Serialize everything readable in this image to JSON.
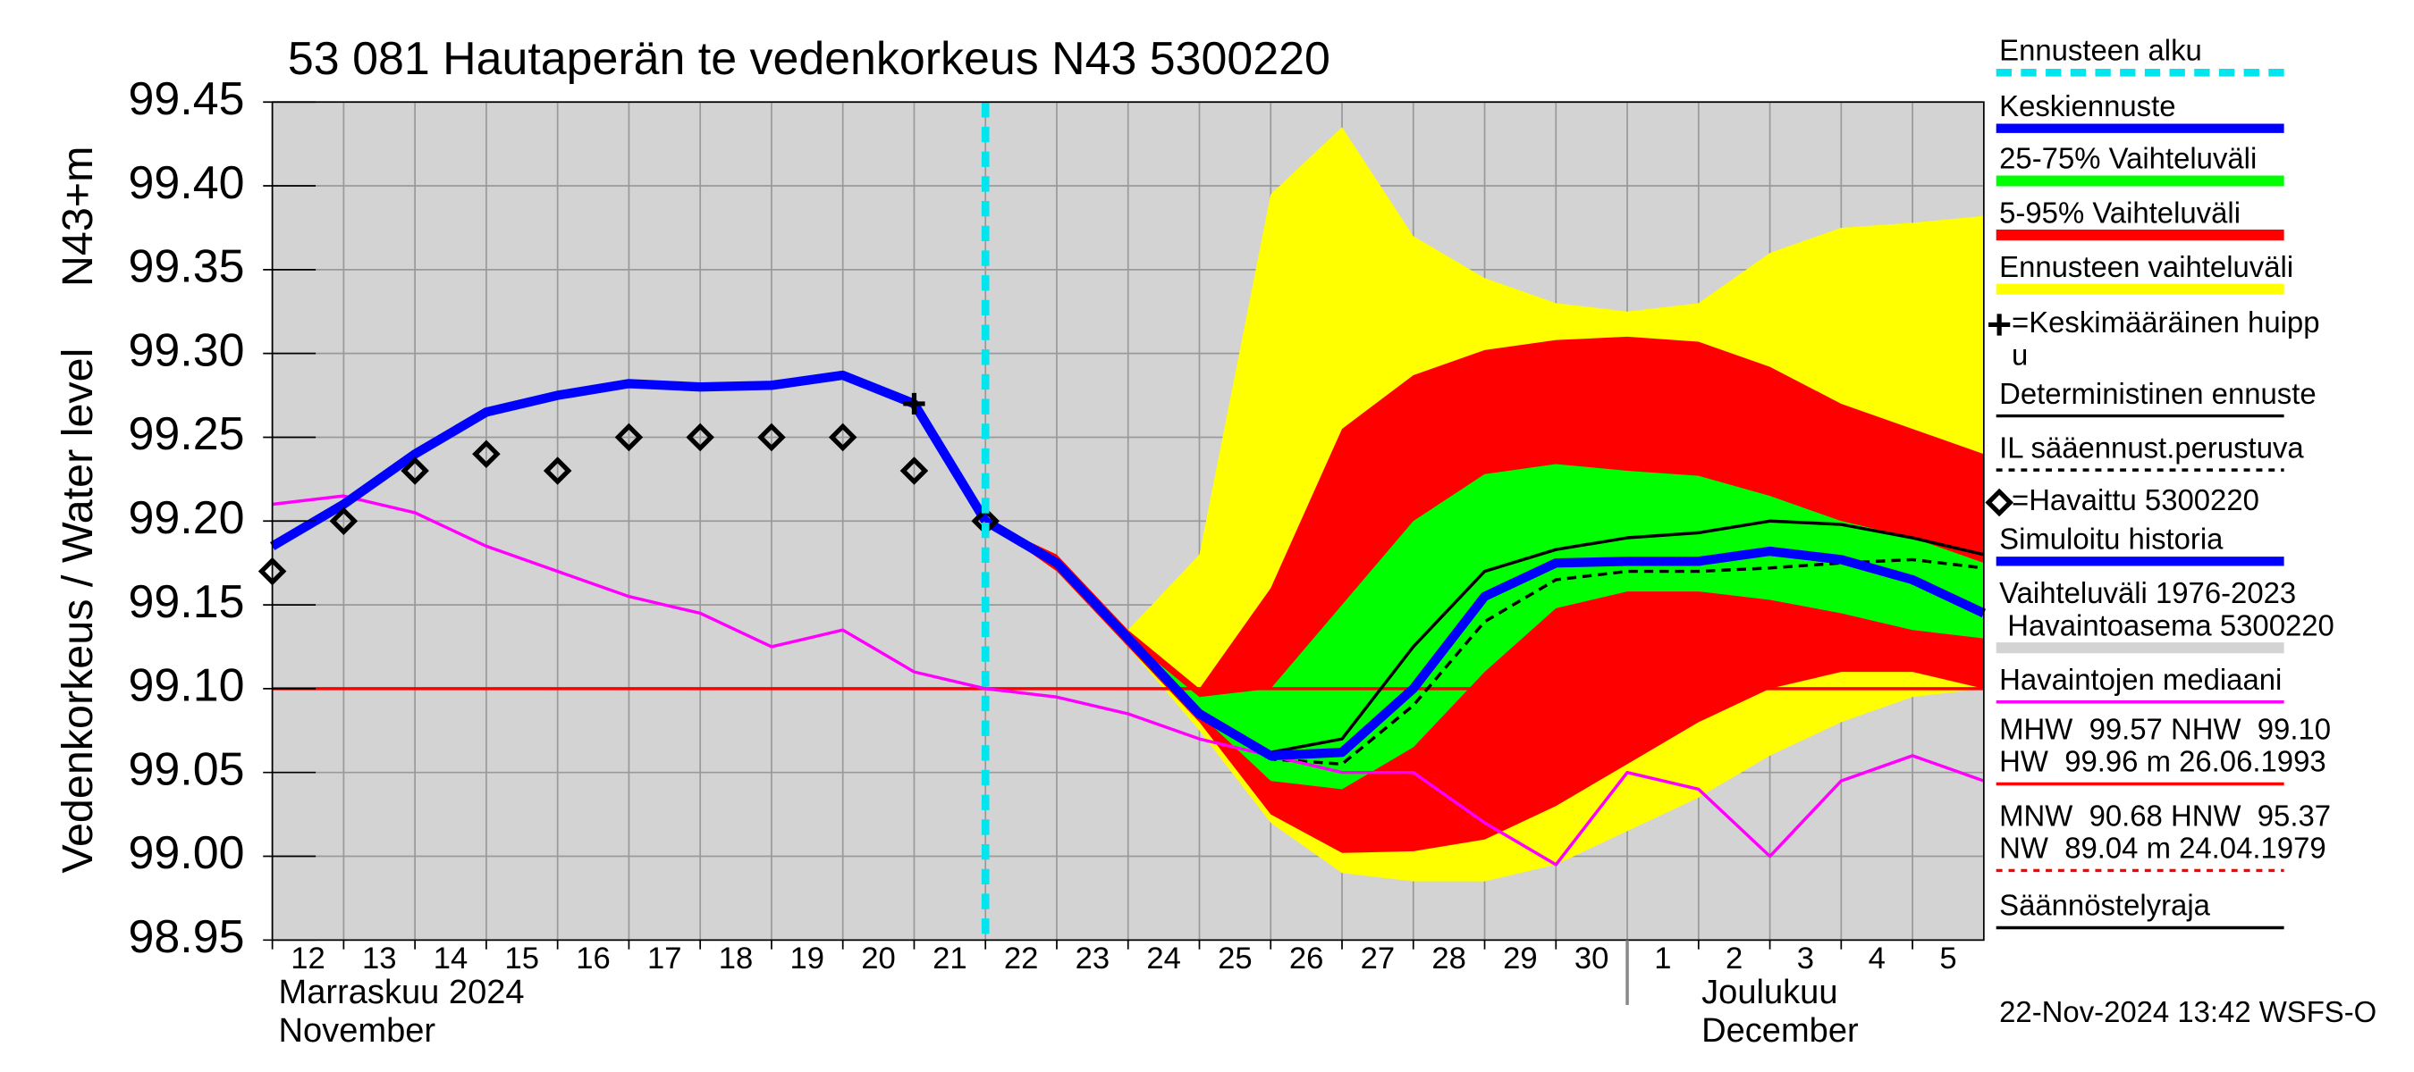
{
  "chart_data": {
    "type": "line",
    "title": "53 081 Hautaperän te vedenkorkeus N43 5300220",
    "y_label": "Vedenkorkeus / Water level",
    "y_unit_label": "N43+m",
    "footer": "22-Nov-2024 13:42 WSFS-O",
    "xlim": [
      0,
      24
    ],
    "ylim": [
      98.95,
      99.45
    ],
    "yticks": [
      98.95,
      {
        "value": 99.0,
        "label": "99.00"
      },
      99.05,
      {
        "value": 99.1,
        "label": "99.10"
      },
      99.15,
      {
        "value": 99.2,
        "label": "99.20"
      },
      99.25,
      {
        "value": 99.3,
        "label": "99.30"
      },
      99.35,
      {
        "value": 99.4,
        "label": "99.40"
      },
      99.45
    ],
    "xticks": [
      {
        "value": 0,
        "label": "12"
      },
      {
        "value": 1,
        "label": "13"
      },
      {
        "value": 2,
        "label": "14"
      },
      {
        "value": 3,
        "label": "15"
      },
      {
        "value": 4,
        "label": "16"
      },
      {
        "value": 5,
        "label": "17"
      },
      {
        "value": 6,
        "label": "18"
      },
      {
        "value": 7,
        "label": "19"
      },
      {
        "value": 8,
        "label": "20"
      },
      {
        "value": 9,
        "label": "21"
      },
      {
        "value": 10,
        "label": "22"
      },
      {
        "value": 11,
        "label": "23"
      },
      {
        "value": 12,
        "label": "24"
      },
      {
        "value": 13,
        "label": "25"
      },
      {
        "value": 14,
        "label": "26"
      },
      {
        "value": 15,
        "label": "27"
      },
      {
        "value": 16,
        "label": "28"
      },
      {
        "value": 17,
        "label": "29"
      },
      {
        "value": 18,
        "label": "30"
      },
      {
        "value": 19,
        "label": "1"
      },
      {
        "value": 20,
        "label": "2"
      },
      {
        "value": 21,
        "label": "3"
      },
      {
        "value": 22,
        "label": "4"
      },
      {
        "value": 23,
        "label": "5"
      }
    ],
    "months": [
      {
        "start": 0,
        "lines": [
          "Marraskuu 2024",
          "November"
        ]
      },
      {
        "start": 19,
        "lines": [
          "Joulukuu",
          "December"
        ]
      }
    ],
    "grid": true,
    "series": [
      {
        "name": "Ennusteen alku",
        "kind": "vline",
        "x": 10,
        "color": "#00e5ee",
        "style": "dashed"
      },
      {
        "name": "Keskiennuste",
        "kind": "line",
        "color": "#0000ff",
        "style": "thick",
        "x": [
          10,
          11,
          12,
          13,
          14,
          15,
          16,
          17,
          18,
          19,
          20,
          21,
          22,
          23,
          24
        ],
        "values": [
          99.2,
          99.175,
          99.13,
          99.085,
          99.06,
          99.062,
          99.1,
          99.155,
          99.175,
          99.176,
          99.176,
          99.182,
          99.177,
          99.165,
          99.145
        ]
      },
      {
        "name": "25-75% Vaihteluväli",
        "kind": "band",
        "color": "#00ff00",
        "x": [
          10,
          11,
          12,
          13,
          14,
          15,
          16,
          17,
          18,
          19,
          20,
          21,
          22,
          23,
          24
        ],
        "low": [
          99.2,
          99.172,
          99.128,
          99.085,
          99.045,
          99.04,
          99.065,
          99.11,
          99.148,
          99.158,
          99.158,
          99.153,
          99.145,
          99.135,
          99.13
        ],
        "high": [
          99.2,
          99.178,
          99.13,
          99.095,
          99.1,
          99.15,
          99.2,
          99.228,
          99.234,
          99.23,
          99.227,
          99.215,
          99.2,
          99.19,
          99.175
        ]
      },
      {
        "name": "5-95% Vaihteluväli",
        "kind": "band",
        "color": "#ff0000",
        "x": [
          10,
          11,
          12,
          13,
          14,
          15,
          16,
          17,
          18,
          19,
          20,
          21,
          22,
          23,
          24
        ],
        "low": [
          99.2,
          99.17,
          99.125,
          99.08,
          99.025,
          99.002,
          99.003,
          99.01,
          99.03,
          99.055,
          99.08,
          99.1,
          99.11,
          99.11,
          99.1
        ],
        "high": [
          99.2,
          99.18,
          99.135,
          99.1,
          99.16,
          99.255,
          99.287,
          99.302,
          99.308,
          99.31,
          99.307,
          99.292,
          99.27,
          99.255,
          99.24
        ]
      },
      {
        "name": "Ennusteen vaihteluväli",
        "kind": "band",
        "color": "#ffff00",
        "x": [
          10,
          11,
          12,
          13,
          14,
          15,
          16,
          17,
          18,
          19,
          20,
          21,
          22,
          23,
          24
        ],
        "low": [
          99.2,
          99.17,
          99.125,
          99.075,
          99.02,
          98.99,
          98.985,
          98.985,
          98.995,
          99.015,
          99.035,
          99.06,
          99.08,
          99.095,
          99.1
        ],
        "high": [
          99.2,
          99.18,
          99.135,
          99.18,
          99.395,
          99.435,
          99.37,
          99.345,
          99.33,
          99.325,
          99.33,
          99.36,
          99.375,
          99.378,
          99.382
        ]
      },
      {
        "name": [
          "=Keskimääräinen huipp",
          "u"
        ],
        "kind": "marker",
        "marker": "cross",
        "color": "#000000",
        "x": [
          9
        ],
        "values": [
          99.27
        ]
      },
      {
        "name": "Deterministinen ennuste",
        "kind": "line",
        "color": "#000000",
        "style": "thin",
        "x": [
          10,
          11,
          12,
          13,
          14,
          15,
          16,
          17,
          18,
          19,
          20,
          21,
          22,
          23,
          24
        ],
        "values": [
          99.2,
          99.175,
          99.13,
          99.085,
          99.062,
          99.07,
          99.125,
          99.17,
          99.183,
          99.19,
          99.193,
          99.2,
          99.198,
          99.19,
          99.18
        ]
      },
      {
        "name": "IL sääennust.perustuva",
        "kind": "line",
        "color": "#000000",
        "style": "dashed",
        "x": [
          10,
          11,
          12,
          13,
          14,
          15,
          16,
          17,
          18,
          19,
          20,
          21,
          22,
          23,
          24
        ],
        "values": [
          99.2,
          99.175,
          99.13,
          99.085,
          99.058,
          99.055,
          99.09,
          99.14,
          99.165,
          99.17,
          99.17,
          99.172,
          99.175,
          99.177,
          99.172
        ]
      },
      {
        "name": "=Havaittu 5300220",
        "kind": "marker",
        "marker": "diamond",
        "color": "#000000",
        "x": [
          0,
          1,
          2,
          3,
          4,
          5,
          6,
          7,
          8,
          9,
          10
        ],
        "values": [
          99.17,
          99.2,
          99.23,
          99.24,
          99.23,
          99.25,
          99.25,
          99.25,
          99.25,
          99.23,
          99.2
        ]
      },
      {
        "name": "Simuloitu historia",
        "kind": "line",
        "color": "#0000ff",
        "style": "thick",
        "x": [
          0,
          1,
          2,
          3,
          4,
          5,
          6,
          7,
          8,
          9,
          10
        ],
        "values": [
          99.185,
          99.21,
          99.24,
          99.265,
          99.275,
          99.282,
          99.28,
          99.281,
          99.287,
          99.27,
          99.2
        ]
      },
      {
        "name": [
          "Vaihteluväli 1976-2023",
          " Havaintoasema 5300220"
        ],
        "kind": "background",
        "color": "#d3d3d3"
      },
      {
        "name": "Havaintojen mediaani",
        "kind": "line",
        "color": "#ff00ff",
        "style": "thin",
        "x": [
          0,
          1,
          2,
          3,
          4,
          5,
          6,
          7,
          8,
          9,
          10,
          11,
          12,
          13,
          14,
          15,
          16,
          17,
          18,
          19,
          20,
          21,
          22,
          23,
          24
        ],
        "values": [
          99.21,
          99.215,
          99.205,
          99.185,
          99.17,
          99.155,
          99.145,
          99.125,
          99.135,
          99.11,
          99.1,
          99.095,
          99.085,
          99.07,
          99.06,
          99.05,
          99.05,
          99.02,
          98.995,
          99.05,
          99.04,
          99.0,
          99.045,
          99.06,
          99.045
        ]
      },
      {
        "name": [
          "MHW  99.57 NHW  99.10",
          "HW  99.96 m 26.06.1993"
        ],
        "kind": "hline",
        "y": 99.1,
        "color": "#ff0000",
        "style": "thin"
      },
      {
        "name": [
          "MNW  90.68 HNW  95.37",
          "NW  89.04 m 24.04.1979"
        ],
        "kind": "note",
        "color": "#ff0000",
        "style": "dashed"
      },
      {
        "name": "Säännöstelyraja",
        "kind": "note",
        "color": "#000000",
        "style": "thin"
      }
    ]
  }
}
